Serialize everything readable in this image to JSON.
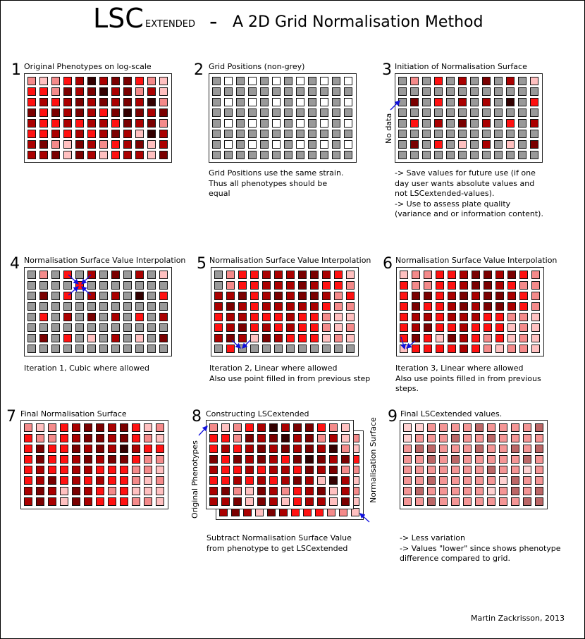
{
  "title": {
    "main": "LSC",
    "sub": "EXTENDED",
    "dash": "-",
    "rest": "A 2D Grid Normalisation Method"
  },
  "palette": {
    "grey": "#999999",
    "white": "#ffffff",
    "pink": "#f48a8a",
    "lightpink": "#ffc0c0",
    "red": "#ff1111",
    "darkred": "#aa0000",
    "maroon": "#7a0000",
    "black": "#330000",
    "final_light": "#ffd0d0",
    "final_mid": "#f49595",
    "final_dark": "#bb6666",
    "arrow": "#1010dd"
  },
  "panels": [
    {
      "num": "1",
      "label": "Original Phenotypes on log-scale"
    },
    {
      "num": "2",
      "label": "Grid Positions (non-grey)",
      "note": [
        "Grid Positions use the same strain.",
        "Thus all phenotypes should be",
        "equal"
      ]
    },
    {
      "num": "3",
      "label": "Initiation of Normalisation Surface",
      "side_label": "No data",
      "note": [
        "-> Save values for future use (if one",
        "day user wants absolute values and",
        "not LSCextended-values).",
        "-> Use to assess plate quality",
        "(variance and or information content)."
      ]
    },
    {
      "num": "4",
      "label": "Normalisation Surface Value Interpolation",
      "note": [
        "Iteration 1, Cubic where allowed"
      ]
    },
    {
      "num": "5",
      "label": "Normalisation Surface Value Interpolation",
      "note": [
        "Iteration 2, Linear where allowed",
        "Also use point filled in from previous step"
      ]
    },
    {
      "num": "6",
      "label": "Normalisation Surface Value Interpolation",
      "note": [
        "Iteration 3, Linear where allowed",
        "Also use points filled in from previous",
        "steps."
      ]
    },
    {
      "num": "7",
      "label": "Final Normalisation Surface"
    },
    {
      "num": "8",
      "label": "Constructing LSCextended",
      "side_left": "Original Phenotypes",
      "side_right": "Normalisation Surface",
      "note": [
        "Subtract Normalisation Surface Value",
        "from phenotype to get LSCextended"
      ]
    },
    {
      "num": "9",
      "label": "Final LSCextended values.",
      "note": [
        "-> Less variation",
        "-> Values \"lower\" since shows phenotype",
        "difference compared to grid."
      ]
    }
  ],
  "credit": "Martin Zackrisson, 2013"
}
